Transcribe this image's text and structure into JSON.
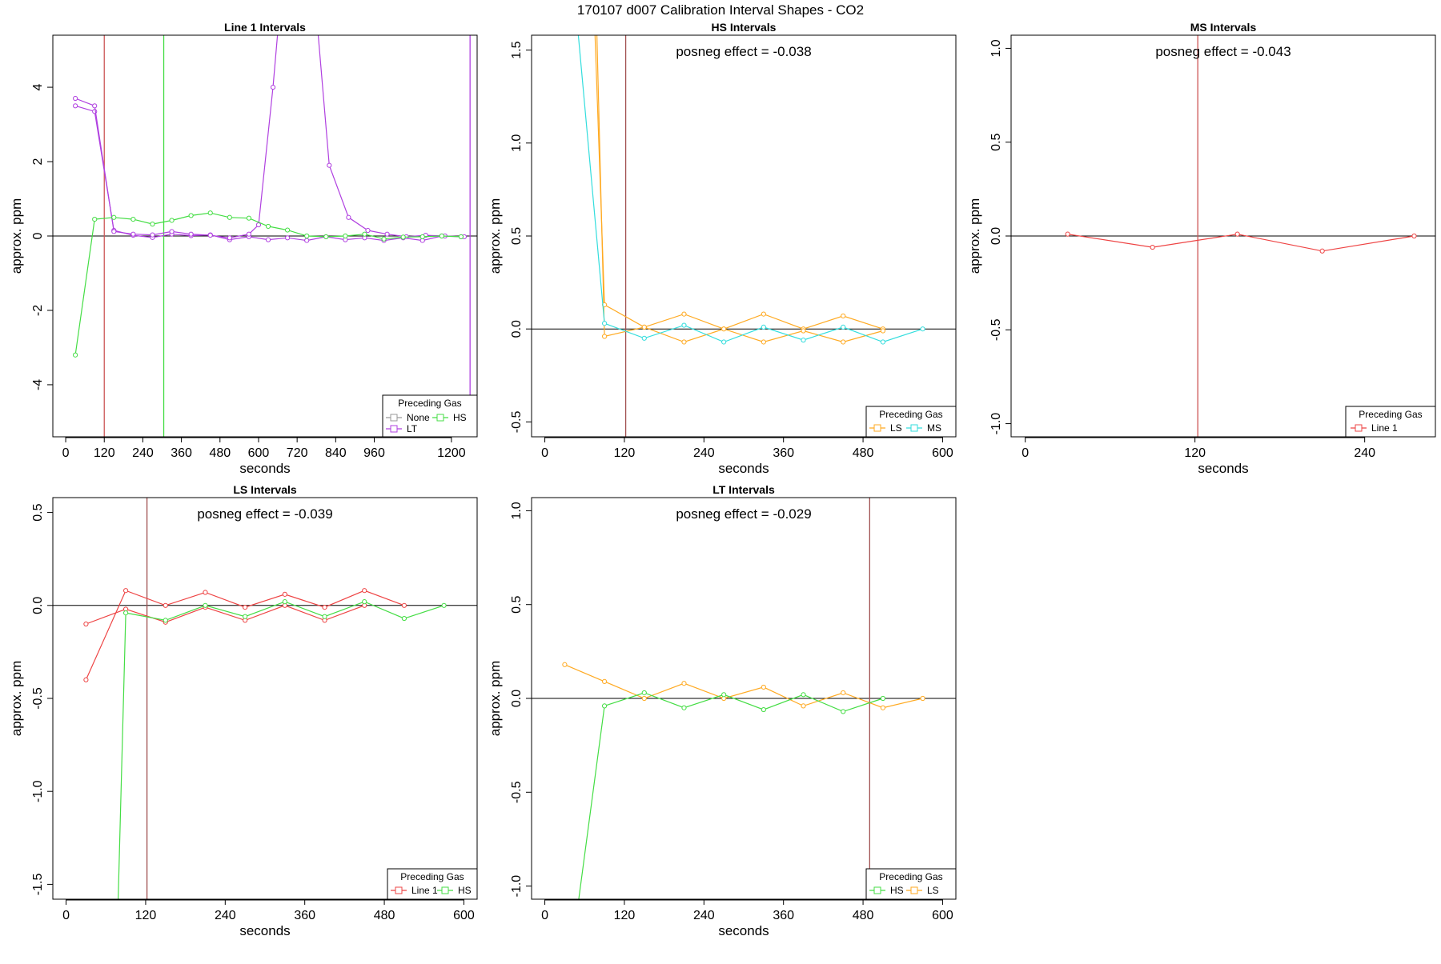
{
  "main_title": "170107  d007   Calibration Interval Shapes - CO2",
  "chart_data": [
    {
      "type": "line",
      "title": "Line 1 Intervals",
      "xlabel": "seconds",
      "ylabel": "approx. ppm",
      "xlim": [
        -40,
        1280
      ],
      "ylim": [
        -5.4,
        5.4
      ],
      "xticks": [
        0,
        120,
        240,
        360,
        480,
        600,
        720,
        840,
        960,
        1200
      ],
      "xtick_labels": [
        "0",
        "120",
        "240",
        "360",
        "480",
        "600",
        "720",
        "840",
        "960",
        "1200"
      ],
      "yticks": [
        -4,
        -2,
        0,
        2,
        4
      ],
      "ytick_labels": [
        "-4",
        "-2",
        "0",
        "2",
        "4"
      ],
      "hlines": [
        0
      ],
      "vlines": [
        {
          "x": 120,
          "color": "#cc5555"
        },
        {
          "x": 305,
          "color": "#44dd44"
        },
        {
          "x": 1258,
          "color": "#b040e0"
        }
      ],
      "annotation": "",
      "legend": {
        "title": "Preceding Gas",
        "position": "bottom-right",
        "entries": [
          {
            "name": "None",
            "color": "#999999"
          },
          {
            "name": "HS",
            "color": "#44dd44"
          },
          {
            "name": "LT",
            "color": "#b040e0"
          }
        ]
      },
      "series": [
        {
          "name": "LT",
          "color": "#b040e0",
          "x": [
            30,
            90,
            150,
            210,
            270,
            330,
            390,
            450,
            510,
            570,
            630,
            690,
            750,
            810,
            870,
            930,
            990,
            1050,
            1110,
            1170,
            1230
          ],
          "y": [
            3.5,
            3.35,
            0.15,
            0.02,
            -0.04,
            0.05,
            0.01,
            0.03,
            -0.1,
            -0.02,
            -0.1,
            -0.05,
            -0.12,
            -0.02,
            -0.1,
            -0.05,
            -0.12,
            -0.05,
            -0.12,
            0.0,
            -0.02
          ]
        },
        {
          "name": "LT",
          "color": "#b040e0",
          "x": [
            30,
            90,
            150,
            210,
            270,
            330,
            390,
            450,
            510,
            570,
            600,
            645,
            700,
            770,
            820,
            880,
            940,
            1000,
            1060,
            1120,
            1180,
            1240
          ],
          "y": [
            3.7,
            3.5,
            0.12,
            0.05,
            0.03,
            0.12,
            0.05,
            0.02,
            -0.05,
            0.05,
            0.3,
            4.0,
            9.5,
            7.0,
            1.9,
            0.5,
            0.15,
            0.05,
            -0.02,
            0.02,
            0.0,
            -0.02
          ]
        },
        {
          "name": "HS",
          "color": "#44dd44",
          "x": [
            30,
            90,
            150,
            210,
            270,
            330,
            390,
            450,
            510,
            570,
            630,
            690,
            750,
            810,
            870,
            930,
            990,
            1050,
            1110,
            1170,
            1230
          ],
          "y": [
            -3.2,
            0.45,
            0.5,
            0.45,
            0.32,
            0.42,
            0.55,
            0.62,
            0.5,
            0.48,
            0.26,
            0.16,
            0.0,
            -0.02,
            0.0,
            0.05,
            -0.08,
            -0.03,
            -0.02,
            0.0,
            -0.02
          ]
        }
      ]
    },
    {
      "type": "line",
      "title": "HS Intervals",
      "xlabel": "seconds",
      "ylabel": "approx. ppm",
      "xlim": [
        -20,
        620
      ],
      "ylim": [
        -0.58,
        1.58
      ],
      "xticks": [
        0,
        120,
        240,
        360,
        480,
        600
      ],
      "xtick_labels": [
        "0",
        "120",
        "240",
        "360",
        "480",
        "600"
      ],
      "yticks": [
        -0.5,
        0.0,
        0.5,
        1.0,
        1.5
      ],
      "ytick_labels": [
        "-0.5",
        "0.0",
        "0.5",
        "1.0",
        "1.5"
      ],
      "hlines": [
        0
      ],
      "vlines": [
        {
          "x": 122,
          "color": "#a05050"
        }
      ],
      "annotation": "posneg effect = -0.038",
      "legend": {
        "title": "Preceding Gas",
        "position": "bottom-right",
        "entries": [
          {
            "name": "LS",
            "color": "#ffaa22"
          },
          {
            "name": "MS",
            "color": "#33dddd"
          }
        ]
      },
      "series": [
        {
          "name": "LS",
          "color": "#ffaa22",
          "x": [
            78,
            90,
            150,
            210,
            270,
            330,
            390,
            450,
            510
          ],
          "y": [
            1.65,
            -0.04,
            0.01,
            0.08,
            0.0,
            0.08,
            0.0,
            0.07,
            0.0
          ]
        },
        {
          "name": "LS",
          "color": "#ffaa22",
          "x": [
            75,
            90,
            150,
            210,
            270,
            330,
            390,
            450,
            510
          ],
          "y": [
            1.65,
            0.13,
            0.01,
            -0.07,
            0.0,
            -0.07,
            -0.01,
            -0.07,
            -0.01
          ]
        },
        {
          "name": "MS",
          "color": "#33dddd",
          "x": [
            50,
            90,
            150,
            210,
            270,
            330,
            390,
            450,
            510,
            570
          ],
          "y": [
            1.6,
            0.03,
            -0.05,
            0.02,
            -0.07,
            0.01,
            -0.06,
            0.01,
            -0.07,
            0.0
          ]
        }
      ]
    },
    {
      "type": "line",
      "title": "MS Intervals",
      "xlabel": "seconds",
      "ylabel": "approx. ppm",
      "xlim": [
        -10,
        290
      ],
      "ylim": [
        -1.07,
        1.07
      ],
      "xticks": [
        0,
        120,
        240
      ],
      "xtick_labels": [
        "0",
        "120",
        "240"
      ],
      "yticks": [
        -1.0,
        -0.5,
        0.0,
        0.5,
        1.0
      ],
      "ytick_labels": [
        "-1.0",
        "-0.5",
        "0.0",
        "0.5",
        "1.0"
      ],
      "hlines": [
        0
      ],
      "vlines": [
        {
          "x": 122,
          "color": "#cc5555"
        }
      ],
      "annotation": "posneg effect = -0.043",
      "legend": {
        "title": "Preceding Gas",
        "position": "bottom-right",
        "entries": [
          {
            "name": "Line 1",
            "color": "#ee4444"
          }
        ]
      },
      "series": [
        {
          "name": "Line 1",
          "color": "#ee4444",
          "x": [
            30,
            90,
            150,
            210,
            275
          ],
          "y": [
            0.01,
            -0.06,
            0.01,
            -0.08,
            0.0
          ]
        }
      ]
    },
    {
      "type": "line",
      "title": "LS Intervals",
      "xlabel": "seconds",
      "ylabel": "approx. ppm",
      "xlim": [
        -20,
        620
      ],
      "ylim": [
        -1.58,
        0.58
      ],
      "xticks": [
        0,
        120,
        240,
        360,
        480,
        600
      ],
      "xtick_labels": [
        "0",
        "120",
        "240",
        "360",
        "480",
        "600"
      ],
      "yticks": [
        -1.5,
        -1.0,
        -0.5,
        0.0,
        0.5
      ],
      "ytick_labels": [
        "-1.5",
        "-1.0",
        "-0.5",
        "0.0",
        "0.5"
      ],
      "hlines": [
        0
      ],
      "vlines": [
        {
          "x": 122,
          "color": "#a05050"
        }
      ],
      "annotation": "posneg effect = -0.039",
      "legend": {
        "title": "Preceding Gas",
        "position": "bottom-right",
        "entries": [
          {
            "name": "Line 1",
            "color": "#ee4444"
          },
          {
            "name": "HS",
            "color": "#44dd44"
          }
        ]
      },
      "series": [
        {
          "name": "Line 1",
          "color": "#ee4444",
          "x": [
            30,
            90,
            150,
            210,
            270,
            330,
            390,
            450,
            510
          ],
          "y": [
            -0.4,
            0.08,
            0.0,
            0.07,
            -0.01,
            0.06,
            -0.01,
            0.08,
            0.0
          ]
        },
        {
          "name": "Line 1",
          "color": "#ee4444",
          "x": [
            30,
            90,
            150,
            210,
            270,
            330,
            390,
            450
          ],
          "y": [
            -0.1,
            -0.02,
            -0.09,
            -0.01,
            -0.08,
            0.0,
            -0.08,
            0.0
          ]
        },
        {
          "name": "HS",
          "color": "#44dd44",
          "x": [
            78,
            90,
            150,
            210,
            270,
            330,
            390,
            450,
            510,
            570
          ],
          "y": [
            -1.65,
            -0.04,
            -0.08,
            0.0,
            -0.06,
            0.02,
            -0.06,
            0.02,
            -0.07,
            0.0
          ]
        }
      ]
    },
    {
      "type": "line",
      "title": "LT Intervals",
      "xlabel": "seconds",
      "ylabel": "approx. ppm",
      "xlim": [
        -20,
        620
      ],
      "ylim": [
        -1.07,
        1.07
      ],
      "xticks": [
        0,
        120,
        240,
        360,
        480,
        600
      ],
      "xtick_labels": [
        "0",
        "120",
        "240",
        "360",
        "480",
        "600"
      ],
      "yticks": [
        -1.0,
        -0.5,
        0.0,
        0.5,
        1.0
      ],
      "ytick_labels": [
        "-1.0",
        "-0.5",
        "0.0",
        "0.5",
        "1.0"
      ],
      "hlines": [
        0
      ],
      "vlines": [
        {
          "x": 490,
          "color": "#a05050"
        }
      ],
      "annotation": "posneg effect = -0.029",
      "legend": {
        "title": "Preceding Gas",
        "position": "bottom-right",
        "entries": [
          {
            "name": "HS",
            "color": "#44dd44"
          },
          {
            "name": "LS",
            "color": "#ffaa22"
          }
        ]
      },
      "series": [
        {
          "name": "LS",
          "color": "#ffaa22",
          "x": [
            30,
            90,
            150,
            210,
            270,
            330,
            390,
            450,
            510,
            570
          ],
          "y": [
            0.18,
            0.09,
            0.0,
            0.08,
            0.0,
            0.06,
            -0.04,
            0.03,
            -0.05,
            0.0
          ]
        },
        {
          "name": "HS",
          "color": "#44dd44",
          "x": [
            50,
            90,
            150,
            210,
            270,
            330,
            390,
            450,
            510
          ],
          "y": [
            -1.1,
            -0.04,
            0.03,
            -0.05,
            0.02,
            -0.06,
            0.02,
            -0.07,
            0.0
          ]
        }
      ]
    }
  ]
}
